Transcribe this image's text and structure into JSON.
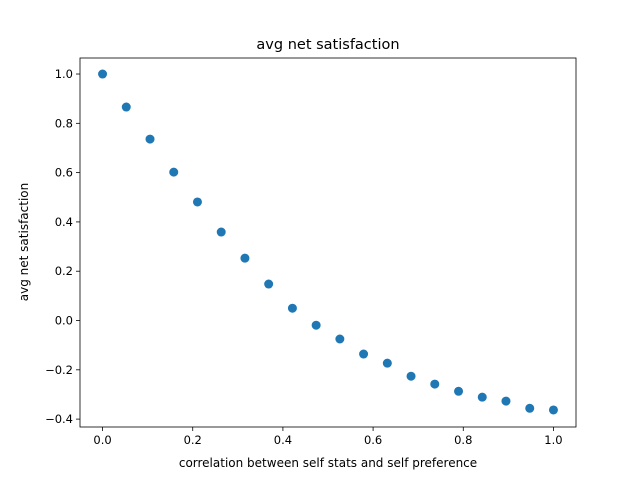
{
  "chart_data": {
    "type": "scatter",
    "title": "avg net satisfaction",
    "xlabel": "correlation between self stats and self preference",
    "ylabel": "avg net satisfaction",
    "xlim": [
      -0.05,
      1.05
    ],
    "ylim": [
      -0.432,
      1.065
    ],
    "xticks": [
      "0.0",
      "0.2",
      "0.4",
      "0.6",
      "0.8",
      "1.0"
    ],
    "yticks": [
      "−0.4",
      "−0.2",
      "0.0",
      "0.2",
      "0.4",
      "0.6",
      "0.8",
      "1.0"
    ],
    "grid": false,
    "color": "#1f77b4",
    "x": [
      0.0,
      0.0526,
      0.1053,
      0.1579,
      0.2105,
      0.2632,
      0.3158,
      0.3684,
      0.4211,
      0.4737,
      0.5263,
      0.5789,
      0.6316,
      0.6842,
      0.7368,
      0.7895,
      0.8421,
      0.8947,
      0.9474,
      1.0
    ],
    "y": [
      1.0,
      0.866,
      0.736,
      0.602,
      0.481,
      0.359,
      0.253,
      0.148,
      0.05,
      -0.019,
      -0.075,
      -0.136,
      -0.173,
      -0.226,
      -0.258,
      -0.287,
      -0.311,
      -0.327,
      -0.356,
      -0.363
    ]
  }
}
